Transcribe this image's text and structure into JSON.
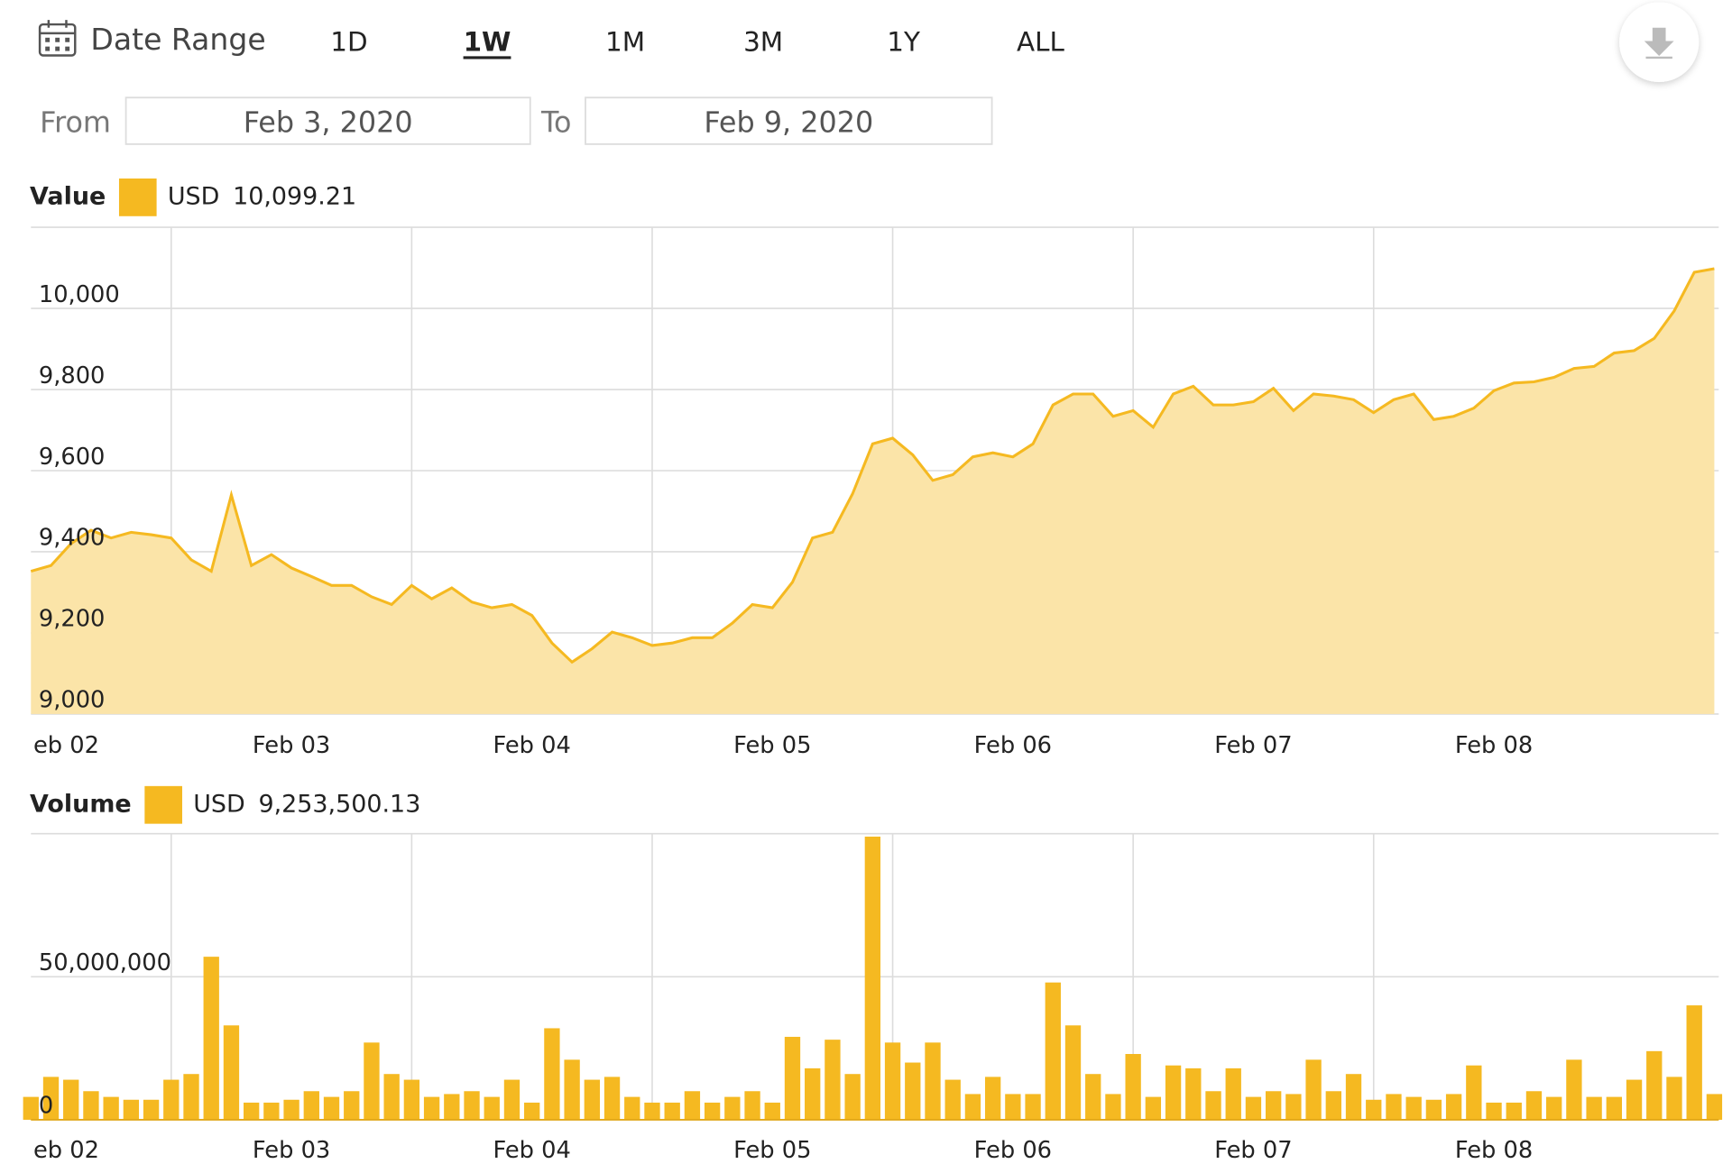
{
  "toolbar": {
    "date_range_label": "Date Range",
    "ranges": [
      {
        "label": "1D",
        "selected": false
      },
      {
        "label": "1W",
        "selected": true
      },
      {
        "label": "1M",
        "selected": false
      },
      {
        "label": "3M",
        "selected": false
      },
      {
        "label": "1Y",
        "selected": false
      },
      {
        "label": "ALL",
        "selected": false
      }
    ]
  },
  "date_inputs": {
    "from_label": "From",
    "from": "Feb 3, 2020",
    "to_label": "To",
    "to": "Feb 9, 2020"
  },
  "chart_data": [
    {
      "type": "area",
      "title": "Value",
      "current": {
        "value": 10099.21,
        "label": "10,099.21"
      },
      "categories": [
        null,
        "eb 02",
        null,
        null,
        null,
        null,
        null,
        null,
        null,
        null,
        null,
        null,
        null,
        "Feb 03",
        null,
        null,
        null,
        null,
        null,
        null,
        null,
        null,
        null,
        null,
        null,
        "Feb 04",
        null,
        null,
        null,
        null,
        null,
        null,
        null,
        null,
        null,
        null,
        null,
        "Feb 05",
        null,
        null,
        null,
        null,
        null,
        null,
        null,
        null,
        null,
        null,
        null,
        "Feb 06",
        null,
        null,
        null,
        null,
        null,
        null,
        null,
        null,
        null,
        null,
        null,
        "Feb 07",
        null,
        null,
        null,
        null,
        null,
        null,
        null,
        null,
        null,
        null,
        null,
        "Feb 08",
        null,
        null,
        null,
        null,
        null,
        null,
        null,
        null,
        null,
        null,
        null
      ],
      "series": [
        {
          "name": "USD",
          "color": "#f5b921",
          "fill": "#fbe4a8",
          "values": [
            9352,
            9366,
            9420,
            9453,
            9434,
            9448,
            9442,
            9434,
            9380,
            9352,
            9540,
            9366,
            9393,
            9360,
            9339,
            9317,
            9317,
            9289,
            9270,
            9317,
            9284,
            9311,
            9276,
            9262,
            9270,
            9243,
            9175,
            9128,
            9161,
            9202,
            9188,
            9169,
            9175,
            9188,
            9188,
            9224,
            9270,
            9262,
            9325,
            9434,
            9448,
            9543,
            9666,
            9680,
            9639,
            9576,
            9590,
            9634,
            9644,
            9634,
            9666,
            9762,
            9789,
            9789,
            9734,
            9748,
            9707,
            9789,
            9808,
            9762,
            9762,
            9770,
            9803,
            9748,
            9789,
            9784,
            9775,
            9743,
            9775,
            9789,
            9726,
            9734,
            9754,
            9797,
            9816,
            9819,
            9830,
            9852,
            9857,
            9890,
            9896,
            9926,
            9994,
            10089,
            10098
          ]
        }
      ],
      "ylim": [
        9000,
        10200
      ],
      "yticks": [
        {
          "value": 9000,
          "label": "9,000"
        },
        {
          "value": 9200,
          "label": "9,200"
        },
        {
          "value": 9400,
          "label": "9,400"
        },
        {
          "value": 9600,
          "label": "9,600"
        },
        {
          "value": 9800,
          "label": "9,800"
        },
        {
          "value": 10000,
          "label": "10,000"
        }
      ],
      "grid": true
    },
    {
      "type": "bar",
      "title": "Volume",
      "current": {
        "value": 9253500.13,
        "label": "9,253,500.13"
      },
      "categories": [
        null,
        "eb 02",
        null,
        null,
        null,
        null,
        null,
        null,
        null,
        null,
        null,
        null,
        null,
        "Feb 03",
        null,
        null,
        null,
        null,
        null,
        null,
        null,
        null,
        null,
        null,
        null,
        "Feb 04",
        null,
        null,
        null,
        null,
        null,
        null,
        null,
        null,
        null,
        null,
        null,
        "Feb 05",
        null,
        null,
        null,
        null,
        null,
        null,
        null,
        null,
        null,
        null,
        null,
        "Feb 06",
        null,
        null,
        null,
        null,
        null,
        null,
        null,
        null,
        null,
        null,
        null,
        "Feb 07",
        null,
        null,
        null,
        null,
        null,
        null,
        null,
        null,
        null,
        null,
        null,
        "Feb 08",
        null,
        null,
        null,
        null,
        null,
        null,
        null,
        null,
        null,
        null,
        null
      ],
      "series": [
        {
          "name": "USD",
          "color": "#f5b921",
          "values": [
            8000000,
            15000000,
            14000000,
            10000000,
            8000000,
            7000000,
            7000000,
            14000000,
            16000000,
            57000000,
            33000000,
            6000000,
            6000000,
            7000000,
            10000000,
            8000000,
            10000000,
            27000000,
            16000000,
            14000000,
            8000000,
            9000000,
            10000000,
            8000000,
            14000000,
            6000000,
            32000000,
            21000000,
            14000000,
            15000000,
            8000000,
            6000000,
            6000000,
            10000000,
            6000000,
            8000000,
            10000000,
            6000000,
            29000000,
            18000000,
            28000000,
            16000000,
            99000000,
            27000000,
            20000000,
            27000000,
            14000000,
            9000000,
            15000000,
            9000000,
            9000000,
            48000000,
            33000000,
            16000000,
            9000000,
            23000000,
            8000000,
            19000000,
            18000000,
            10000000,
            18000000,
            8000000,
            10000000,
            9000000,
            21000000,
            10000000,
            16000000,
            7000000,
            9000000,
            8000000,
            7000000,
            9000000,
            19000000,
            6000000,
            6000000,
            10000000,
            8000000,
            21000000,
            8000000,
            8000000,
            14000000,
            24000000,
            15000000,
            40000000,
            9000000
          ]
        }
      ],
      "ylim": [
        0,
        100000000
      ],
      "yticks": [
        0,
        {
          "value": 50000000,
          "label": "50,000,000"
        }
      ],
      "grid": true
    }
  ]
}
